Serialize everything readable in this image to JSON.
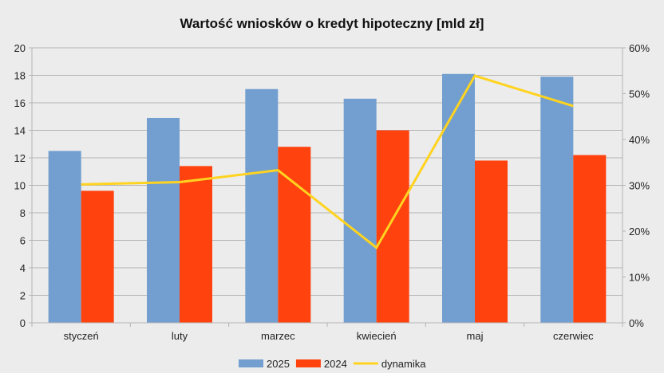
{
  "chart_data": {
    "type": "bar",
    "title": "Wartość wniosków o kredyt hipoteczny [mld zł]",
    "categories": [
      "styczeń",
      "luty",
      "marzec",
      "kwiecień",
      "maj",
      "czerwiec"
    ],
    "series": [
      {
        "name": "2025",
        "type": "bar",
        "axis": "left",
        "color": "#729fcf",
        "values": [
          12.5,
          14.9,
          17.0,
          16.3,
          18.1,
          17.9
        ]
      },
      {
        "name": "2024",
        "type": "bar",
        "axis": "left",
        "color": "#ff420e",
        "values": [
          9.6,
          11.4,
          12.8,
          14.0,
          11.8,
          12.2
        ]
      },
      {
        "name": "dynamika",
        "type": "line",
        "axis": "right",
        "color": "#ffd320",
        "values": [
          30.2,
          30.7,
          33.3,
          16.4,
          53.9,
          47.3
        ]
      }
    ],
    "ylim": [
      0,
      20
    ],
    "yticks": [
      "0",
      "2",
      "4",
      "6",
      "8",
      "10",
      "12",
      "14",
      "16",
      "18",
      "20"
    ],
    "y2lim": [
      0,
      60
    ],
    "y2ticks": [
      "0%",
      "10%",
      "20%",
      "30%",
      "40%",
      "50%",
      "60%"
    ],
    "grid": true,
    "legend_position": "bottom"
  }
}
